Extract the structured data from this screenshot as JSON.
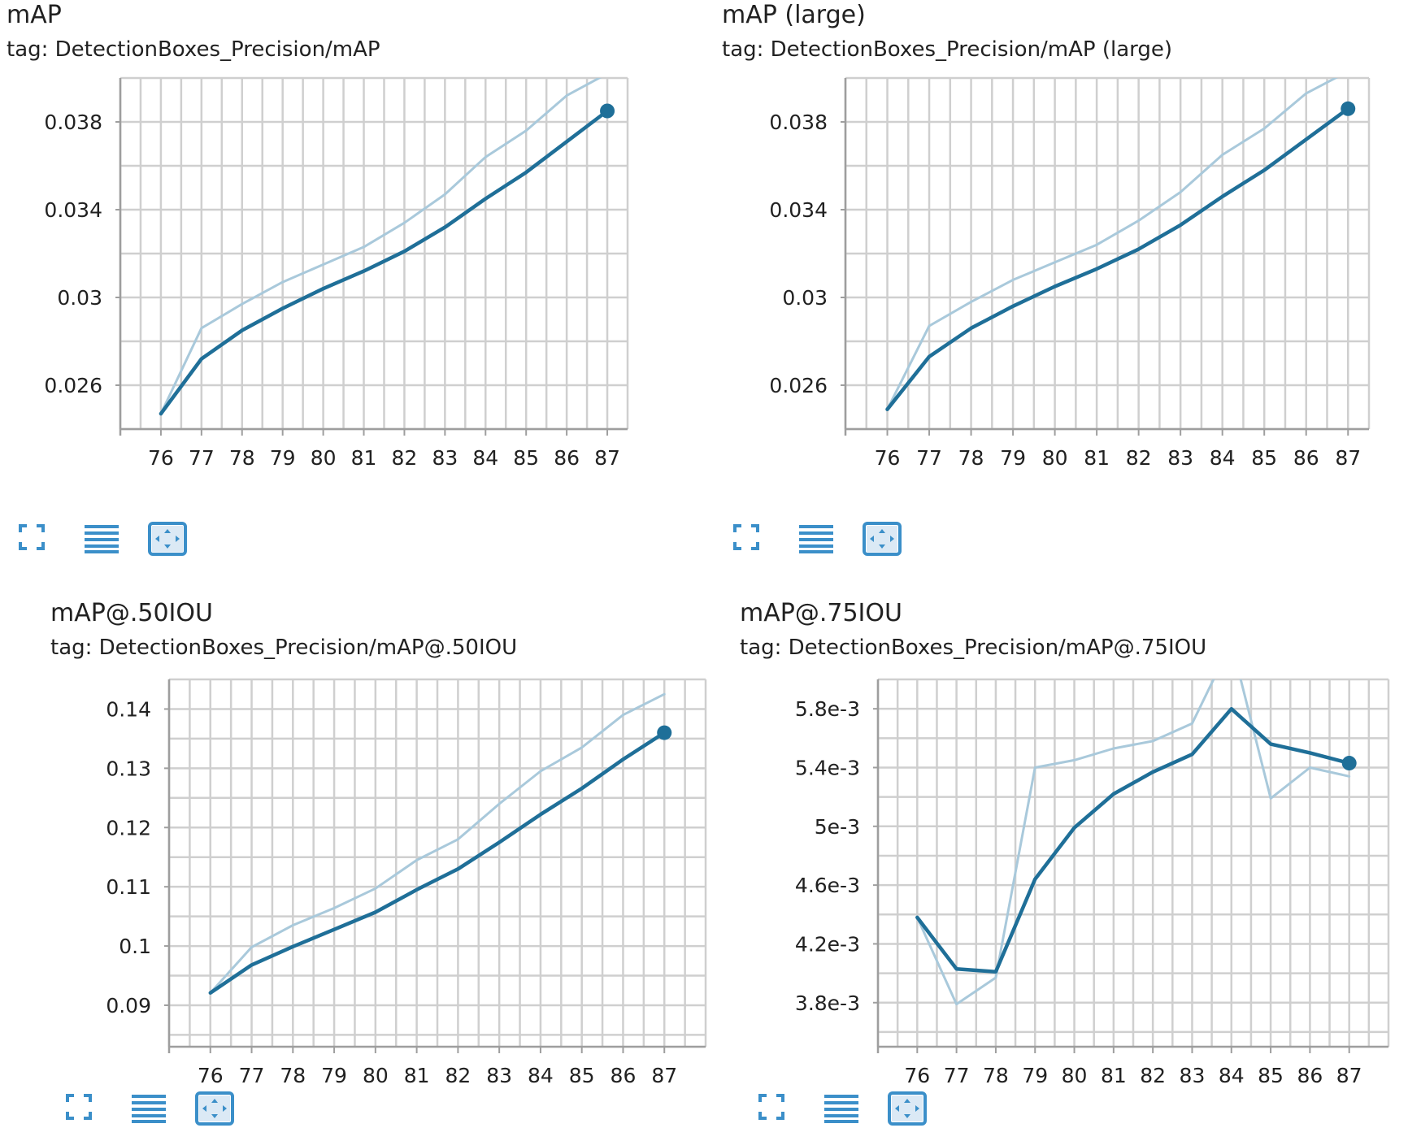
{
  "colors": {
    "smoothed": "#1f6f98",
    "raw": "#a9c9db",
    "grid": "#cfcfcf",
    "axis": "#9e9e9e",
    "icon": "#3b8fc9"
  },
  "toolbar": {
    "icons": [
      "expand-icon",
      "list-icon",
      "fit-domain-icon"
    ]
  },
  "panels": [
    {
      "title": "mAP",
      "tag": "tag: DetectionBoxes_Precision/mAP"
    },
    {
      "title": "mAP (large)",
      "tag": "tag: DetectionBoxes_Precision/mAP (large)"
    },
    {
      "title": "mAP@.50IOU",
      "tag": "tag: DetectionBoxes_Precision/mAP@.50IOU"
    },
    {
      "title": "mAP@.75IOU",
      "tag": "tag: DetectionBoxes_Precision/mAP@.75IOU"
    }
  ],
  "chart_data": [
    {
      "type": "line",
      "title": "mAP",
      "x": [
        76,
        77,
        78,
        79,
        80,
        81,
        82,
        83,
        84,
        85,
        86,
        87
      ],
      "xticks": [
        "76",
        "77",
        "78",
        "79",
        "80",
        "81",
        "82",
        "83",
        "84",
        "85",
        "86",
        "87"
      ],
      "yticks": [
        "0.026",
        "0.03",
        "0.034",
        "0.038"
      ],
      "ytick_values": [
        0.026,
        0.03,
        0.034,
        0.038
      ],
      "xlim": [
        75.0,
        87.5
      ],
      "ylim": [
        0.024,
        0.04
      ],
      "grid": true,
      "series": [
        {
          "style": "raw",
          "values": [
            0.0247,
            0.0286,
            0.0297,
            0.0307,
            0.0315,
            0.0323,
            0.0334,
            0.0347,
            0.0364,
            0.0376,
            0.0392,
            0.0402
          ]
        },
        {
          "style": "smoothed",
          "values": [
            0.0247,
            0.0272,
            0.0285,
            0.0295,
            0.0304,
            0.0312,
            0.0321,
            0.0332,
            0.0345,
            0.0357,
            0.0371,
            0.0385
          ]
        }
      ]
    },
    {
      "type": "line",
      "title": "mAP (large)",
      "x": [
        76,
        77,
        78,
        79,
        80,
        81,
        82,
        83,
        84,
        85,
        86,
        87
      ],
      "xticks": [
        "76",
        "77",
        "78",
        "79",
        "80",
        "81",
        "82",
        "83",
        "84",
        "85",
        "86",
        "87"
      ],
      "yticks": [
        "0.026",
        "0.03",
        "0.034",
        "0.038"
      ],
      "ytick_values": [
        0.026,
        0.03,
        0.034,
        0.038
      ],
      "xlim": [
        75.0,
        87.5
      ],
      "ylim": [
        0.024,
        0.04
      ],
      "grid": true,
      "series": [
        {
          "style": "raw",
          "values": [
            0.0249,
            0.0287,
            0.0298,
            0.0308,
            0.0316,
            0.0324,
            0.0335,
            0.0348,
            0.0365,
            0.0377,
            0.0393,
            0.0403
          ]
        },
        {
          "style": "smoothed",
          "values": [
            0.0249,
            0.0273,
            0.0286,
            0.0296,
            0.0305,
            0.0313,
            0.0322,
            0.0333,
            0.0346,
            0.0358,
            0.0372,
            0.0386
          ]
        }
      ]
    },
    {
      "type": "line",
      "title": "mAP@.50IOU",
      "x": [
        76,
        77,
        78,
        79,
        80,
        81,
        82,
        83,
        84,
        85,
        86,
        87
      ],
      "xticks": [
        "76",
        "77",
        "78",
        "79",
        "80",
        "81",
        "82",
        "83",
        "84",
        "85",
        "86",
        "87"
      ],
      "yticks": [
        "0.09",
        "0.1",
        "0.11",
        "0.12",
        "0.13",
        "0.14"
      ],
      "ytick_values": [
        0.09,
        0.1,
        0.11,
        0.12,
        0.13,
        0.14
      ],
      "xlim": [
        75.0,
        88.0
      ],
      "ylim": [
        0.083,
        0.145
      ],
      "grid": true,
      "series": [
        {
          "style": "raw",
          "values": [
            0.0921,
            0.0998,
            0.1035,
            0.1064,
            0.1097,
            0.1145,
            0.118,
            0.124,
            0.1295,
            0.1335,
            0.139,
            0.1425
          ]
        },
        {
          "style": "smoothed",
          "values": [
            0.0921,
            0.0968,
            0.0999,
            0.1028,
            0.1057,
            0.1095,
            0.113,
            0.1175,
            0.1222,
            0.1266,
            0.1315,
            0.136
          ]
        }
      ]
    },
    {
      "type": "line",
      "title": "mAP@.75IOU",
      "x": [
        76,
        77,
        78,
        79,
        80,
        81,
        82,
        83,
        84,
        85,
        86,
        87
      ],
      "xticks": [
        "76",
        "77",
        "78",
        "79",
        "80",
        "81",
        "82",
        "83",
        "84",
        "85",
        "86",
        "87"
      ],
      "yticks": [
        "3.8e-3",
        "4.2e-3",
        "4.6e-3",
        "5e-3",
        "5.4e-3",
        "5.8e-3"
      ],
      "ytick_values": [
        0.0038,
        0.0042,
        0.0046,
        0.005,
        0.0054,
        0.0058
      ],
      "xlim": [
        75.0,
        88.0
      ],
      "ylim": [
        0.0035,
        0.006
      ],
      "grid": true,
      "series": [
        {
          "style": "raw",
          "values": [
            0.00438,
            0.00379,
            0.00397,
            0.0054,
            0.00545,
            0.00553,
            0.00558,
            0.0057,
            0.00625,
            0.00519,
            0.0054,
            0.00534
          ]
        },
        {
          "style": "smoothed",
          "values": [
            0.00438,
            0.00403,
            0.00401,
            0.00464,
            0.00499,
            0.00522,
            0.00537,
            0.00549,
            0.0058,
            0.00556,
            0.0055,
            0.00543
          ]
        }
      ]
    }
  ]
}
